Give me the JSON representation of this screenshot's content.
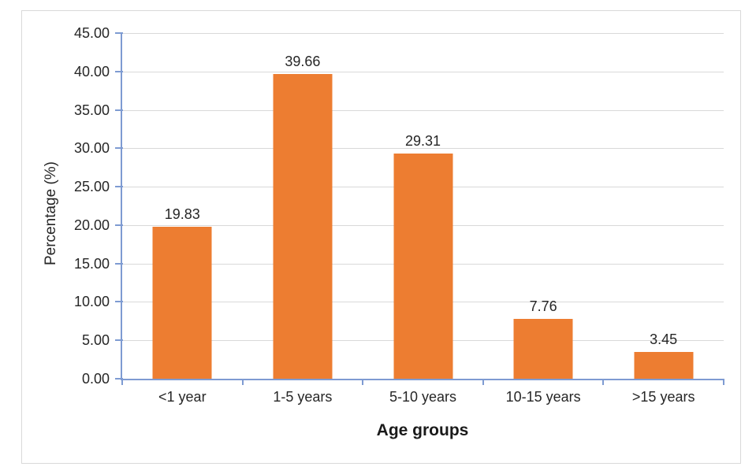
{
  "chart_data": {
    "type": "bar",
    "title": "",
    "categories": [
      "<1 year",
      "1-5 years",
      "5-10 years",
      "10-15 years",
      ">15 years"
    ],
    "values": [
      19.83,
      39.66,
      29.31,
      7.76,
      3.45
    ],
    "value_labels": [
      "19.83",
      "39.66",
      "29.31",
      "7.76",
      "3.45"
    ],
    "xlabel": "Age groups",
    "ylabel": "Percentage (%)",
    "ylim": [
      0,
      45
    ],
    "yticks": [
      45,
      40,
      35,
      30,
      25,
      20,
      15,
      10,
      5,
      0
    ],
    "ytick_labels": [
      "45.00",
      "40.00",
      "35.00",
      "30.00",
      "25.00",
      "20.00",
      "15.00",
      "10.00",
      "5.00",
      "0.00"
    ],
    "grid": true,
    "legend_position": "none",
    "colors": {
      "bar": "#ED7D31",
      "axis": "#7E9BD2",
      "gridline": "#D9D9D9",
      "text": "#262626",
      "frame_border": "#D9D9D9",
      "background": "#FFFFFF"
    }
  }
}
